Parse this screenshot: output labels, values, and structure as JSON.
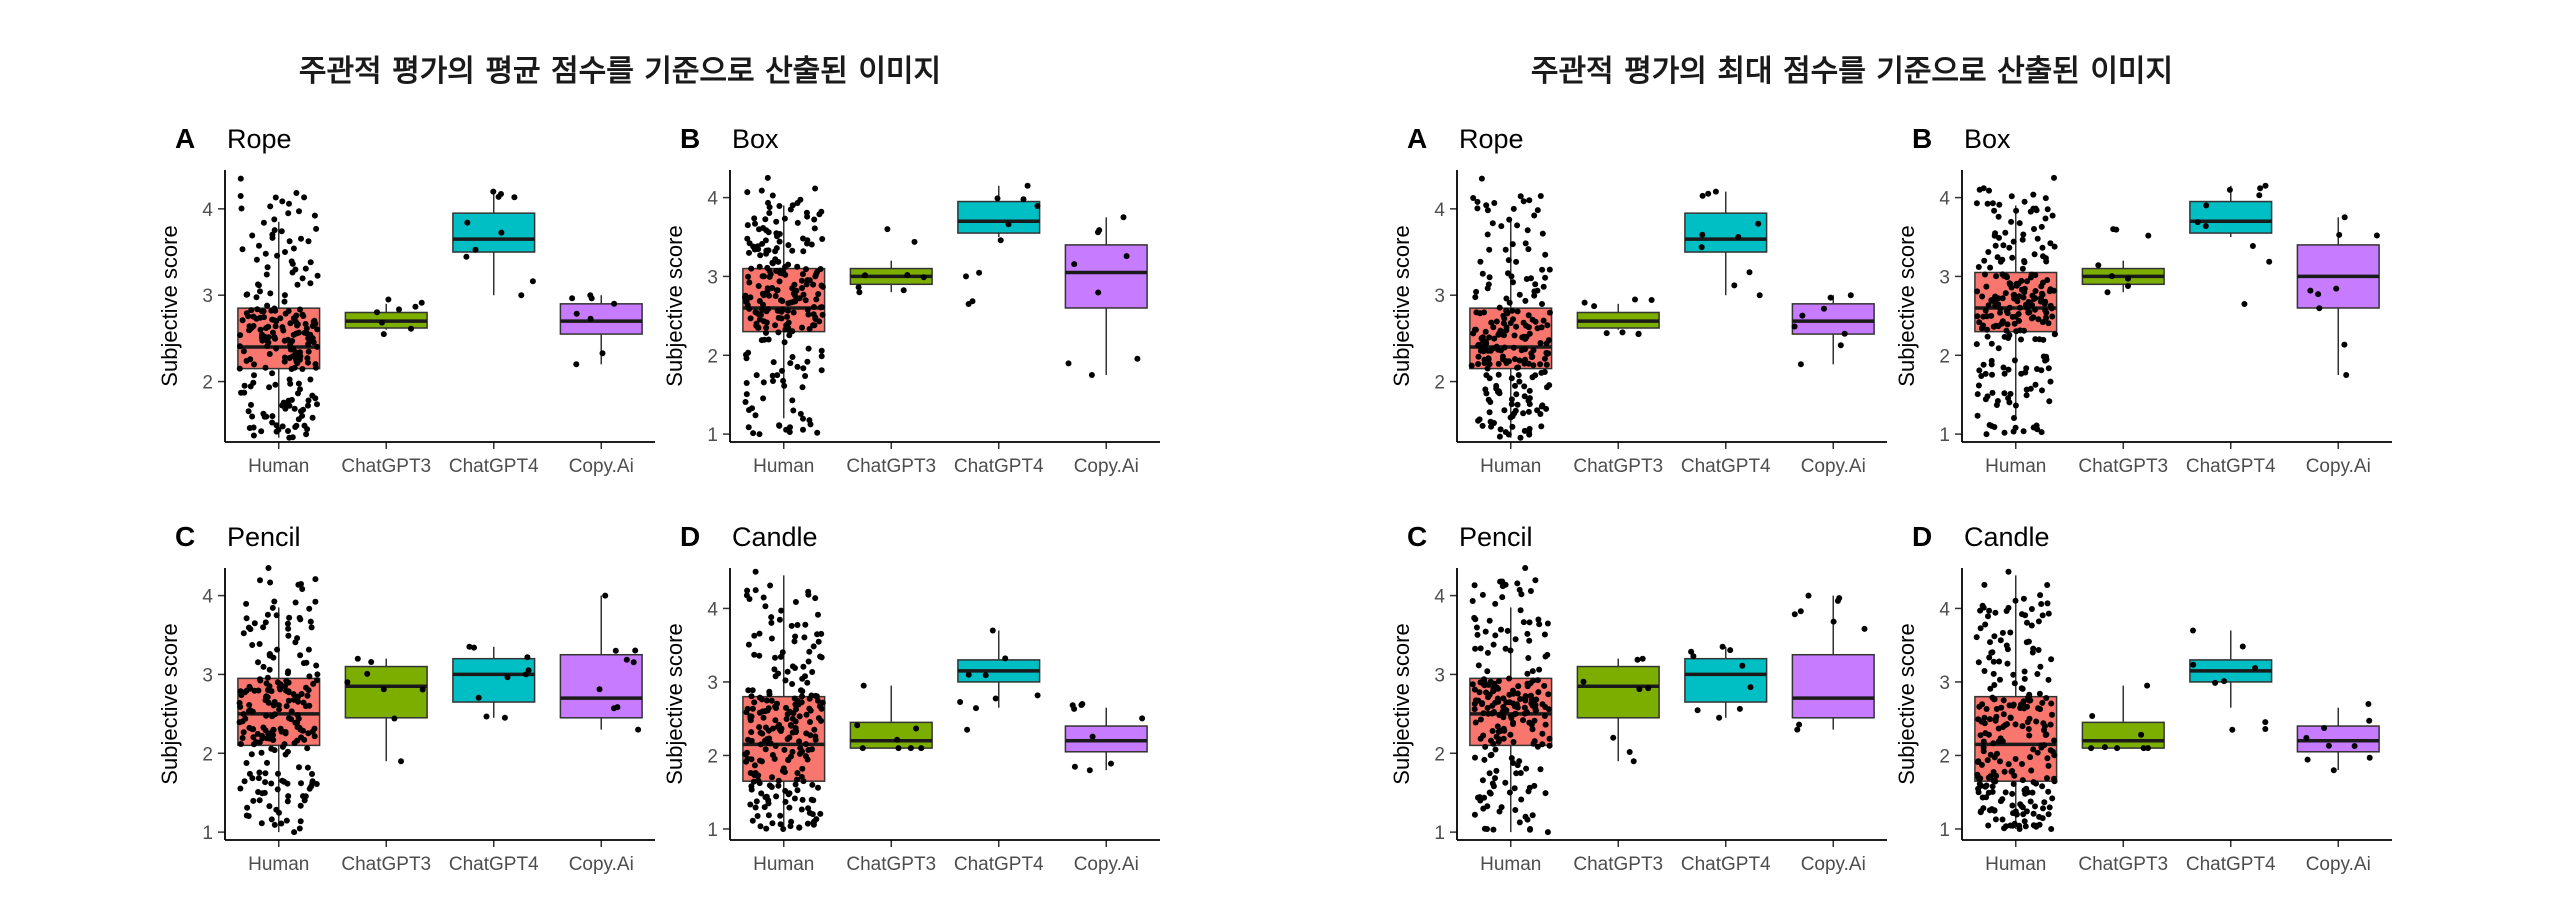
{
  "groups": [
    {
      "title": "주관적 평가의 평균 점수를 기준으로 산출된 이미지"
    },
    {
      "title": "주관적 평가의 최대 점수를 기준으로 산출된 이미지"
    }
  ],
  "colors": {
    "Human": "#F8766D",
    "ChatGPT3": "#7CAE00",
    "ChatGPT4": "#00BFC4",
    "Copy.Ai": "#C77CFF"
  },
  "chart_data": [
    {
      "type": "box",
      "group": 0,
      "letter": "A",
      "name": "Rope",
      "ylabel": "Subjective score",
      "ylim": [
        1.3,
        4.45
      ],
      "yticks": [
        2,
        3,
        4
      ],
      "categories": [
        "Human",
        "ChatGPT3",
        "ChatGPT4",
        "Copy.Ai"
      ],
      "boxes": [
        {
          "q1": 2.15,
          "median": 2.4,
          "q3": 2.85,
          "wlo": 1.35,
          "whi": 3.85,
          "n": 220,
          "pmin": 1.35,
          "pmax": 4.35
        },
        {
          "q1": 2.62,
          "median": 2.7,
          "q3": 2.8,
          "wlo": 2.6,
          "whi": 2.9,
          "n": 8,
          "pmin": 2.55,
          "pmax": 2.95
        },
        {
          "q1": 3.5,
          "median": 3.65,
          "q3": 3.95,
          "wlo": 3.0,
          "whi": 4.2,
          "n": 10,
          "pmin": 3.0,
          "pmax": 4.2
        },
        {
          "q1": 2.55,
          "median": 2.7,
          "q3": 2.9,
          "wlo": 2.2,
          "whi": 3.0,
          "n": 8,
          "pmin": 2.2,
          "pmax": 3.0
        }
      ]
    },
    {
      "type": "box",
      "group": 0,
      "letter": "B",
      "name": "Box",
      "ylabel": "Subjective score",
      "ylim": [
        0.9,
        4.35
      ],
      "yticks": [
        1,
        2,
        3,
        4
      ],
      "categories": [
        "Human",
        "ChatGPT3",
        "ChatGPT4",
        "Copy.Ai"
      ],
      "boxes": [
        {
          "q1": 2.3,
          "median": 2.6,
          "q3": 3.1,
          "wlo": 1.2,
          "whi": 3.9,
          "n": 230,
          "pmin": 1.0,
          "pmax": 4.25
        },
        {
          "q1": 2.9,
          "median": 3.0,
          "q3": 3.1,
          "wlo": 2.8,
          "whi": 3.2,
          "n": 8,
          "pmin": 2.8,
          "pmax": 3.6
        },
        {
          "q1": 3.55,
          "median": 3.7,
          "q3": 3.95,
          "wlo": 3.5,
          "whi": 4.15,
          "n": 10,
          "pmin": 2.65,
          "pmax": 4.15
        },
        {
          "q1": 2.6,
          "median": 3.05,
          "q3": 3.4,
          "wlo": 1.75,
          "whi": 3.75,
          "n": 9,
          "pmin": 1.75,
          "pmax": 3.75
        }
      ]
    },
    {
      "type": "box",
      "group": 0,
      "letter": "C",
      "name": "Pencil",
      "ylabel": "Subjective score",
      "ylim": [
        0.9,
        4.35
      ],
      "yticks": [
        1,
        2,
        3,
        4
      ],
      "categories": [
        "Human",
        "ChatGPT3",
        "ChatGPT4",
        "Copy.Ai"
      ],
      "boxes": [
        {
          "q1": 2.1,
          "median": 2.5,
          "q3": 2.95,
          "wlo": 1.0,
          "whi": 3.85,
          "n": 220,
          "pmin": 1.0,
          "pmax": 4.35
        },
        {
          "q1": 2.45,
          "median": 2.85,
          "q3": 3.1,
          "wlo": 1.9,
          "whi": 3.2,
          "n": 8,
          "pmin": 1.9,
          "pmax": 3.2
        },
        {
          "q1": 2.65,
          "median": 3.0,
          "q3": 3.2,
          "wlo": 2.45,
          "whi": 3.35,
          "n": 9,
          "pmin": 2.45,
          "pmax": 3.35
        },
        {
          "q1": 2.45,
          "median": 2.7,
          "q3": 3.25,
          "wlo": 2.3,
          "whi": 4.0,
          "n": 9,
          "pmin": 2.3,
          "pmax": 4.0
        }
      ]
    },
    {
      "type": "box",
      "group": 0,
      "letter": "D",
      "name": "Candle",
      "ylabel": "Subjective score",
      "ylim": [
        0.85,
        4.55
      ],
      "yticks": [
        1,
        2,
        3,
        4
      ],
      "categories": [
        "Human",
        "ChatGPT3",
        "ChatGPT4",
        "Copy.Ai"
      ],
      "boxes": [
        {
          "q1": 1.65,
          "median": 2.15,
          "q3": 2.8,
          "wlo": 1.0,
          "whi": 4.45,
          "n": 240,
          "pmin": 1.0,
          "pmax": 4.5
        },
        {
          "q1": 2.1,
          "median": 2.2,
          "q3": 2.45,
          "wlo": 2.1,
          "whi": 2.95,
          "n": 8,
          "pmin": 2.1,
          "pmax": 2.95
        },
        {
          "q1": 3.0,
          "median": 3.15,
          "q3": 3.3,
          "wlo": 2.65,
          "whi": 3.7,
          "n": 9,
          "pmin": 2.35,
          "pmax": 3.7
        },
        {
          "q1": 2.05,
          "median": 2.2,
          "q3": 2.4,
          "wlo": 1.8,
          "whi": 2.65,
          "n": 9,
          "pmin": 1.8,
          "pmax": 2.7
        }
      ]
    },
    {
      "type": "box",
      "group": 1,
      "letter": "A",
      "name": "Rope",
      "ylabel": "Subjective score",
      "ylim": [
        1.3,
        4.45
      ],
      "yticks": [
        2,
        3,
        4
      ],
      "categories": [
        "Human",
        "ChatGPT3",
        "ChatGPT4",
        "Copy.Ai"
      ],
      "boxes": [
        {
          "q1": 2.15,
          "median": 2.4,
          "q3": 2.85,
          "wlo": 1.35,
          "whi": 3.85,
          "n": 220,
          "pmin": 1.35,
          "pmax": 4.35
        },
        {
          "q1": 2.62,
          "median": 2.7,
          "q3": 2.8,
          "wlo": 2.6,
          "whi": 2.9,
          "n": 8,
          "pmin": 2.55,
          "pmax": 2.95
        },
        {
          "q1": 3.5,
          "median": 3.65,
          "q3": 3.95,
          "wlo": 3.0,
          "whi": 4.2,
          "n": 10,
          "pmin": 3.0,
          "pmax": 4.2
        },
        {
          "q1": 2.55,
          "median": 2.7,
          "q3": 2.9,
          "wlo": 2.2,
          "whi": 3.0,
          "n": 8,
          "pmin": 2.2,
          "pmax": 3.0
        }
      ]
    },
    {
      "type": "box",
      "group": 1,
      "letter": "B",
      "name": "Box",
      "ylabel": "Subjective score",
      "ylim": [
        0.9,
        4.35
      ],
      "yticks": [
        1,
        2,
        3,
        4
      ],
      "categories": [
        "Human",
        "ChatGPT3",
        "ChatGPT4",
        "Copy.Ai"
      ],
      "boxes": [
        {
          "q1": 2.3,
          "median": 2.6,
          "q3": 3.05,
          "wlo": 1.2,
          "whi": 3.9,
          "n": 230,
          "pmin": 1.0,
          "pmax": 4.25
        },
        {
          "q1": 2.9,
          "median": 3.0,
          "q3": 3.1,
          "wlo": 2.8,
          "whi": 3.2,
          "n": 8,
          "pmin": 2.8,
          "pmax": 3.6
        },
        {
          "q1": 3.55,
          "median": 3.7,
          "q3": 3.95,
          "wlo": 3.5,
          "whi": 4.15,
          "n": 10,
          "pmin": 2.65,
          "pmax": 4.15
        },
        {
          "q1": 2.6,
          "median": 3.0,
          "q3": 3.4,
          "wlo": 1.75,
          "whi": 3.75,
          "n": 9,
          "pmin": 1.75,
          "pmax": 3.75
        }
      ]
    },
    {
      "type": "box",
      "group": 1,
      "letter": "C",
      "name": "Pencil",
      "ylabel": "Subjective score",
      "ylim": [
        0.9,
        4.35
      ],
      "yticks": [
        1,
        2,
        3,
        4
      ],
      "categories": [
        "Human",
        "ChatGPT3",
        "ChatGPT4",
        "Copy.Ai"
      ],
      "boxes": [
        {
          "q1": 2.1,
          "median": 2.5,
          "q3": 2.95,
          "wlo": 1.0,
          "whi": 3.85,
          "n": 220,
          "pmin": 1.0,
          "pmax": 4.35
        },
        {
          "q1": 2.45,
          "median": 2.85,
          "q3": 3.1,
          "wlo": 1.9,
          "whi": 3.2,
          "n": 8,
          "pmin": 1.9,
          "pmax": 3.2
        },
        {
          "q1": 2.65,
          "median": 3.0,
          "q3": 3.2,
          "wlo": 2.45,
          "whi": 3.35,
          "n": 9,
          "pmin": 2.45,
          "pmax": 3.35
        },
        {
          "q1": 2.45,
          "median": 2.7,
          "q3": 3.25,
          "wlo": 2.3,
          "whi": 4.0,
          "n": 9,
          "pmin": 2.3,
          "pmax": 4.0
        }
      ]
    },
    {
      "type": "box",
      "group": 1,
      "letter": "D",
      "name": "Candle",
      "ylabel": "Subjective score",
      "ylim": [
        0.85,
        4.55
      ],
      "yticks": [
        1,
        2,
        3,
        4
      ],
      "categories": [
        "Human",
        "ChatGPT3",
        "ChatGPT4",
        "Copy.Ai"
      ],
      "boxes": [
        {
          "q1": 1.65,
          "median": 2.15,
          "q3": 2.8,
          "wlo": 1.0,
          "whi": 4.45,
          "n": 240,
          "pmin": 1.0,
          "pmax": 4.5
        },
        {
          "q1": 2.1,
          "median": 2.2,
          "q3": 2.45,
          "wlo": 2.1,
          "whi": 2.95,
          "n": 8,
          "pmin": 2.1,
          "pmax": 2.95
        },
        {
          "q1": 3.0,
          "median": 3.15,
          "q3": 3.3,
          "wlo": 2.65,
          "whi": 3.7,
          "n": 9,
          "pmin": 2.35,
          "pmax": 3.7
        },
        {
          "q1": 2.05,
          "median": 2.2,
          "q3": 2.4,
          "wlo": 1.8,
          "whi": 2.65,
          "n": 9,
          "pmin": 1.8,
          "pmax": 2.7
        }
      ]
    }
  ]
}
